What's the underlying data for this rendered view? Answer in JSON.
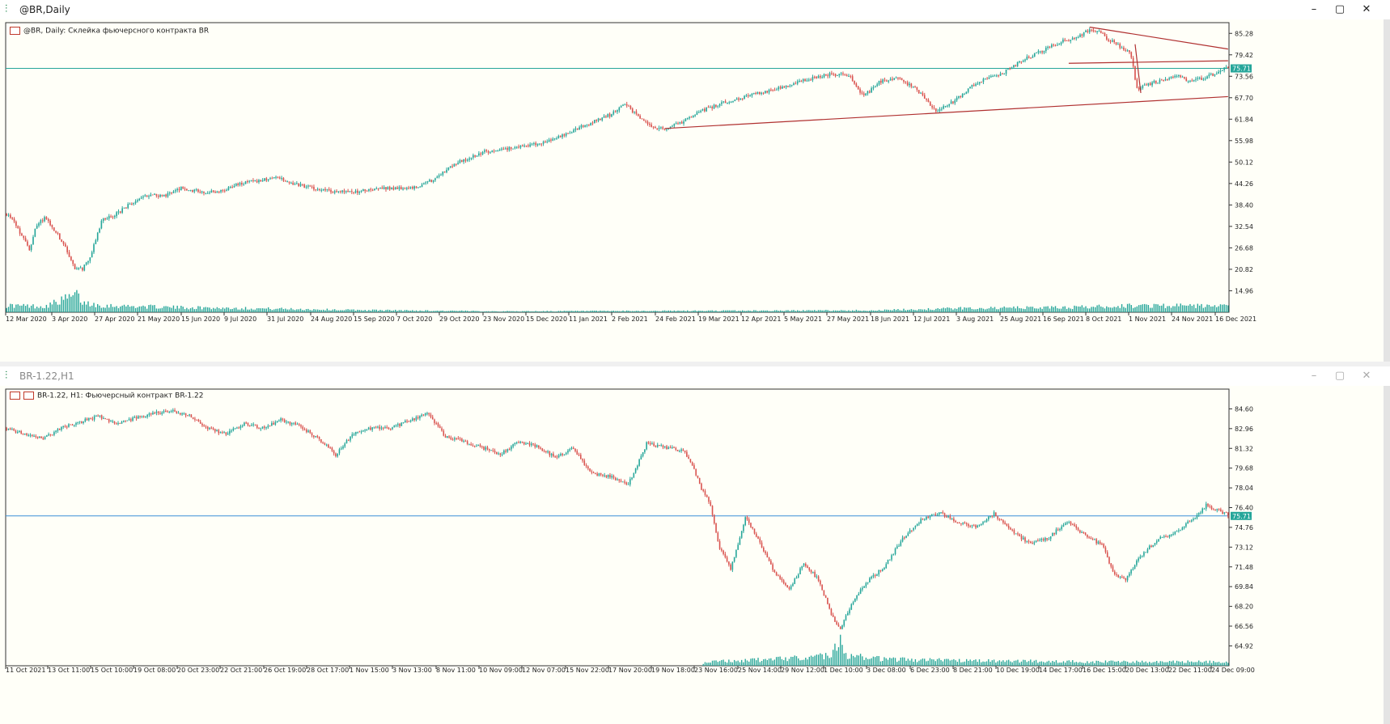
{
  "colors": {
    "bull": "#26a69a",
    "bear": "#d9534f",
    "line": "#26a69a",
    "trend": "#b03030",
    "price_label": "#26a69a",
    "hline_bottom": "#3c8fd8"
  },
  "windows": [
    {
      "title": "@BR,Daily",
      "header": "@BR, Daily:  Склейка фьючерсного контракта BR",
      "icon": "candlestick-chart-icon",
      "buttons": [
        "–",
        "▢",
        "✕"
      ]
    },
    {
      "title": "BR-1.22,H1",
      "header": "BR-1.22, H1:  Фьючерсный контракт BR-1.22",
      "icon": "candlestick-chart-icon",
      "buttons": [
        "–",
        "▢",
        "✕"
      ]
    }
  ],
  "chart_data": [
    {
      "type": "candlestick",
      "ylim": [
        9.08,
        88.21
      ],
      "yticks": [
        85.28,
        79.42,
        73.56,
        67.7,
        61.84,
        55.98,
        50.12,
        44.26,
        38.4,
        32.54,
        26.68,
        20.82,
        14.96
      ],
      "current_price": 75.71,
      "current_price_label": "75.71",
      "x_tick_labels": [
        "12 Mar 2020",
        "3 Apr 2020",
        "27 Apr 2020",
        "21 May 2020",
        "15 Jun 2020",
        "9 Jul 2020",
        "31 Jul 2020",
        "24 Aug 2020",
        "15 Sep 2020",
        "7 Oct 2020",
        "29 Oct 2020",
        "23 Nov 2020",
        "15 Dec 2020",
        "11 Jan 2021",
        "2 Feb 2021",
        "24 Feb 2021",
        "19 Mar 2021",
        "12 Apr 2021",
        "5 May 2021",
        "27 May 2021",
        "18 Jun 2021",
        "12 Jul 2021",
        "3 Aug 2021",
        "25 Aug 2021",
        "16 Sep 2021",
        "8 Oct 2021",
        "1 Nov 2021",
        "24 Nov 2021",
        "16 Dec 2021"
      ],
      "price_path": [
        [
          0,
          36
        ],
        [
          5,
          33
        ],
        [
          12,
          26
        ],
        [
          15,
          32
        ],
        [
          20,
          35
        ],
        [
          30,
          28
        ],
        [
          36,
          21
        ],
        [
          40,
          21
        ],
        [
          44,
          24
        ],
        [
          50,
          34
        ],
        [
          58,
          36
        ],
        [
          66,
          39
        ],
        [
          74,
          41
        ],
        [
          84,
          41
        ],
        [
          92,
          43
        ],
        [
          102,
          42
        ],
        [
          112,
          42
        ],
        [
          122,
          44
        ],
        [
          132,
          45
        ],
        [
          142,
          46
        ],
        [
          152,
          44
        ],
        [
          162,
          43
        ],
        [
          174,
          42
        ],
        [
          184,
          42
        ],
        [
          194,
          43
        ],
        [
          204,
          43
        ],
        [
          214,
          43
        ],
        [
          224,
          45
        ],
        [
          238,
          50
        ],
        [
          252,
          53
        ],
        [
          266,
          54
        ],
        [
          280,
          55
        ],
        [
          292,
          57
        ],
        [
          304,
          60
        ],
        [
          318,
          63
        ],
        [
          326,
          66
        ],
        [
          336,
          61
        ],
        [
          346,
          59
        ],
        [
          356,
          61
        ],
        [
          366,
          64
        ],
        [
          376,
          66
        ],
        [
          390,
          68
        ],
        [
          404,
          70
        ],
        [
          418,
          72
        ],
        [
          432,
          74
        ],
        [
          444,
          74
        ],
        [
          452,
          68
        ],
        [
          460,
          72
        ],
        [
          470,
          73
        ],
        [
          480,
          70
        ],
        [
          490,
          64
        ],
        [
          500,
          67
        ],
        [
          512,
          72
        ],
        [
          524,
          74
        ],
        [
          536,
          78
        ],
        [
          548,
          81
        ],
        [
          556,
          83
        ],
        [
          564,
          84
        ],
        [
          570,
          86
        ],
        [
          576,
          86
        ],
        [
          580,
          84
        ],
        [
          586,
          82
        ],
        [
          590,
          81
        ],
        [
          593,
          79
        ],
        [
          596,
          70
        ],
        [
          600,
          71
        ],
        [
          606,
          72
        ],
        [
          612,
          73
        ],
        [
          618,
          74
        ],
        [
          624,
          72
        ],
        [
          630,
          73
        ],
        [
          636,
          74
        ],
        [
          640,
          75
        ],
        [
          644,
          76
        ]
      ],
      "volume_profile": [
        [
          0,
          0.35
        ],
        [
          20,
          0.3
        ],
        [
          37,
          0.9
        ],
        [
          40,
          0.5
        ],
        [
          50,
          0.35
        ],
        [
          90,
          0.25
        ],
        [
          130,
          0.2
        ],
        [
          180,
          0.12
        ],
        [
          260,
          0.05
        ],
        [
          460,
          0.1
        ],
        [
          500,
          0.2
        ],
        [
          560,
          0.25
        ],
        [
          600,
          0.35
        ],
        [
          644,
          0.3
        ]
      ],
      "trendlines": [
        [
          [
            347,
            59.3
          ],
          [
            644,
            68.0
          ]
        ],
        [
          [
            571,
            87.0
          ],
          [
            644,
            81.0
          ]
        ],
        [
          [
            560,
            77.1
          ],
          [
            644,
            77.8
          ]
        ],
        [
          [
            595,
            82.3
          ],
          [
            598,
            69.0
          ]
        ]
      ],
      "n_bars": 645
    },
    {
      "type": "candlestick",
      "ylim": [
        63.27,
        86.24
      ],
      "yticks": [
        84.6,
        82.96,
        81.32,
        79.68,
        78.04,
        76.4,
        74.76,
        73.12,
        71.48,
        69.84,
        68.2,
        66.56,
        64.92
      ],
      "current_price": 75.71,
      "current_price_label": "75.71",
      "x_tick_labels": [
        "11 Oct 2021",
        "13 Oct 11:00",
        "15 Oct 10:00",
        "19 Oct 08:00",
        "20 Oct 23:00",
        "22 Oct 21:00",
        "26 Oct 19:00",
        "28 Oct 17:00",
        "1 Nov 15:00",
        "3 Nov 13:00",
        "8 Nov 11:00",
        "10 Nov 09:00",
        "12 Nov 07:00",
        "15 Nov 22:00",
        "17 Nov 20:00",
        "19 Nov 18:00",
        "23 Nov 16:00",
        "25 Nov 14:00",
        "29 Nov 12:00",
        "1 Dec 10:00",
        "3 Dec 08:00",
        "6 Dec 23:00",
        "8 Dec 21:00",
        "10 Dec 19:00",
        "14 Dec 17:00",
        "16 Dec 15:00",
        "20 Dec 13:00",
        "22 Dec 11:00",
        "24 Dec 09:00"
      ],
      "price_path": [
        [
          0,
          83.0
        ],
        [
          10,
          82.5
        ],
        [
          20,
          82.1
        ],
        [
          30,
          83.0
        ],
        [
          40,
          83.5
        ],
        [
          50,
          84.0
        ],
        [
          60,
          83.4
        ],
        [
          70,
          83.8
        ],
        [
          80,
          84.2
        ],
        [
          90,
          84.4
        ],
        [
          100,
          84.1
        ],
        [
          110,
          83.0
        ],
        [
          120,
          82.5
        ],
        [
          130,
          83.4
        ],
        [
          140,
          83.0
        ],
        [
          150,
          83.7
        ],
        [
          160,
          83.2
        ],
        [
          170,
          82.2
        ],
        [
          180,
          80.8
        ],
        [
          190,
          82.6
        ],
        [
          200,
          83.0
        ],
        [
          210,
          83.0
        ],
        [
          220,
          83.6
        ],
        [
          230,
          84.3
        ],
        [
          240,
          82.3
        ],
        [
          250,
          81.9
        ],
        [
          260,
          81.4
        ],
        [
          270,
          80.8
        ],
        [
          280,
          81.9
        ],
        [
          290,
          81.5
        ],
        [
          300,
          80.6
        ],
        [
          310,
          81.3
        ],
        [
          320,
          79.2
        ],
        [
          330,
          79.0
        ],
        [
          340,
          78.3
        ],
        [
          350,
          81.7
        ],
        [
          360,
          81.4
        ],
        [
          370,
          81.1
        ],
        [
          375,
          80.0
        ],
        [
          380,
          78.0
        ],
        [
          385,
          76.6
        ],
        [
          390,
          73.0
        ],
        [
          396,
          71.3
        ],
        [
          404,
          75.6
        ],
        [
          412,
          73.5
        ],
        [
          420,
          71.0
        ],
        [
          428,
          69.6
        ],
        [
          436,
          71.8
        ],
        [
          444,
          70.4
        ],
        [
          452,
          67.2
        ],
        [
          456,
          66.3
        ],
        [
          462,
          68.4
        ],
        [
          470,
          70.2
        ],
        [
          480,
          71.5
        ],
        [
          490,
          73.8
        ],
        [
          500,
          75.4
        ],
        [
          510,
          76.0
        ],
        [
          520,
          75.2
        ],
        [
          530,
          74.8
        ],
        [
          540,
          75.9
        ],
        [
          550,
          74.4
        ],
        [
          560,
          73.4
        ],
        [
          570,
          73.9
        ],
        [
          580,
          75.3
        ],
        [
          590,
          74.1
        ],
        [
          600,
          73.2
        ],
        [
          605,
          71.0
        ],
        [
          612,
          70.4
        ],
        [
          620,
          72.4
        ],
        [
          630,
          73.8
        ],
        [
          640,
          74.4
        ],
        [
          650,
          75.6
        ],
        [
          656,
          76.6
        ],
        [
          662,
          76.2
        ],
        [
          668,
          75.8
        ]
      ],
      "volume_profile": [
        [
          0,
          0
        ],
        [
          380,
          0
        ],
        [
          382,
          0.15
        ],
        [
          420,
          0.25
        ],
        [
          450,
          0.4
        ],
        [
          456,
          1.0
        ],
        [
          460,
          0.4
        ],
        [
          480,
          0.25
        ],
        [
          520,
          0.2
        ],
        [
          600,
          0.15
        ],
        [
          668,
          0.15
        ]
      ],
      "trendlines": [],
      "n_bars": 669
    }
  ]
}
